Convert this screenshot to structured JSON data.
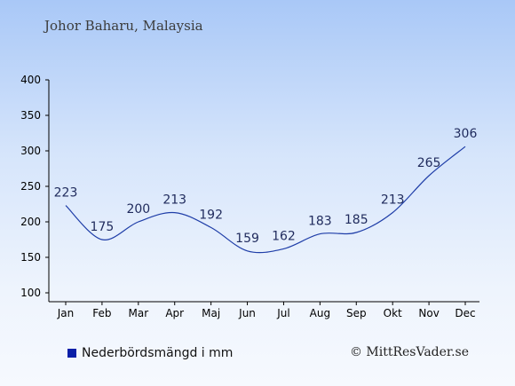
{
  "chart_data": {
    "type": "line",
    "title": "Johor Baharu, Malaysia",
    "categories": [
      "Jan",
      "Feb",
      "Mar",
      "Apr",
      "Maj",
      "Jun",
      "Jul",
      "Aug",
      "Sep",
      "Okt",
      "Nov",
      "Dec"
    ],
    "series": [
      {
        "name": "Nederbördsmängd i mm",
        "values": [
          223,
          175,
          200,
          213,
          192,
          159,
          162,
          183,
          185,
          213,
          265,
          306
        ]
      }
    ],
    "ylim": [
      100,
      400
    ],
    "yticks": [
      100,
      150,
      200,
      250,
      300,
      350,
      400
    ],
    "grid": false,
    "legend": "bottom-left",
    "line_color": "#1f3ea8",
    "legend_color": "#0a1fa8"
  },
  "credit": "© MittResVader.se"
}
